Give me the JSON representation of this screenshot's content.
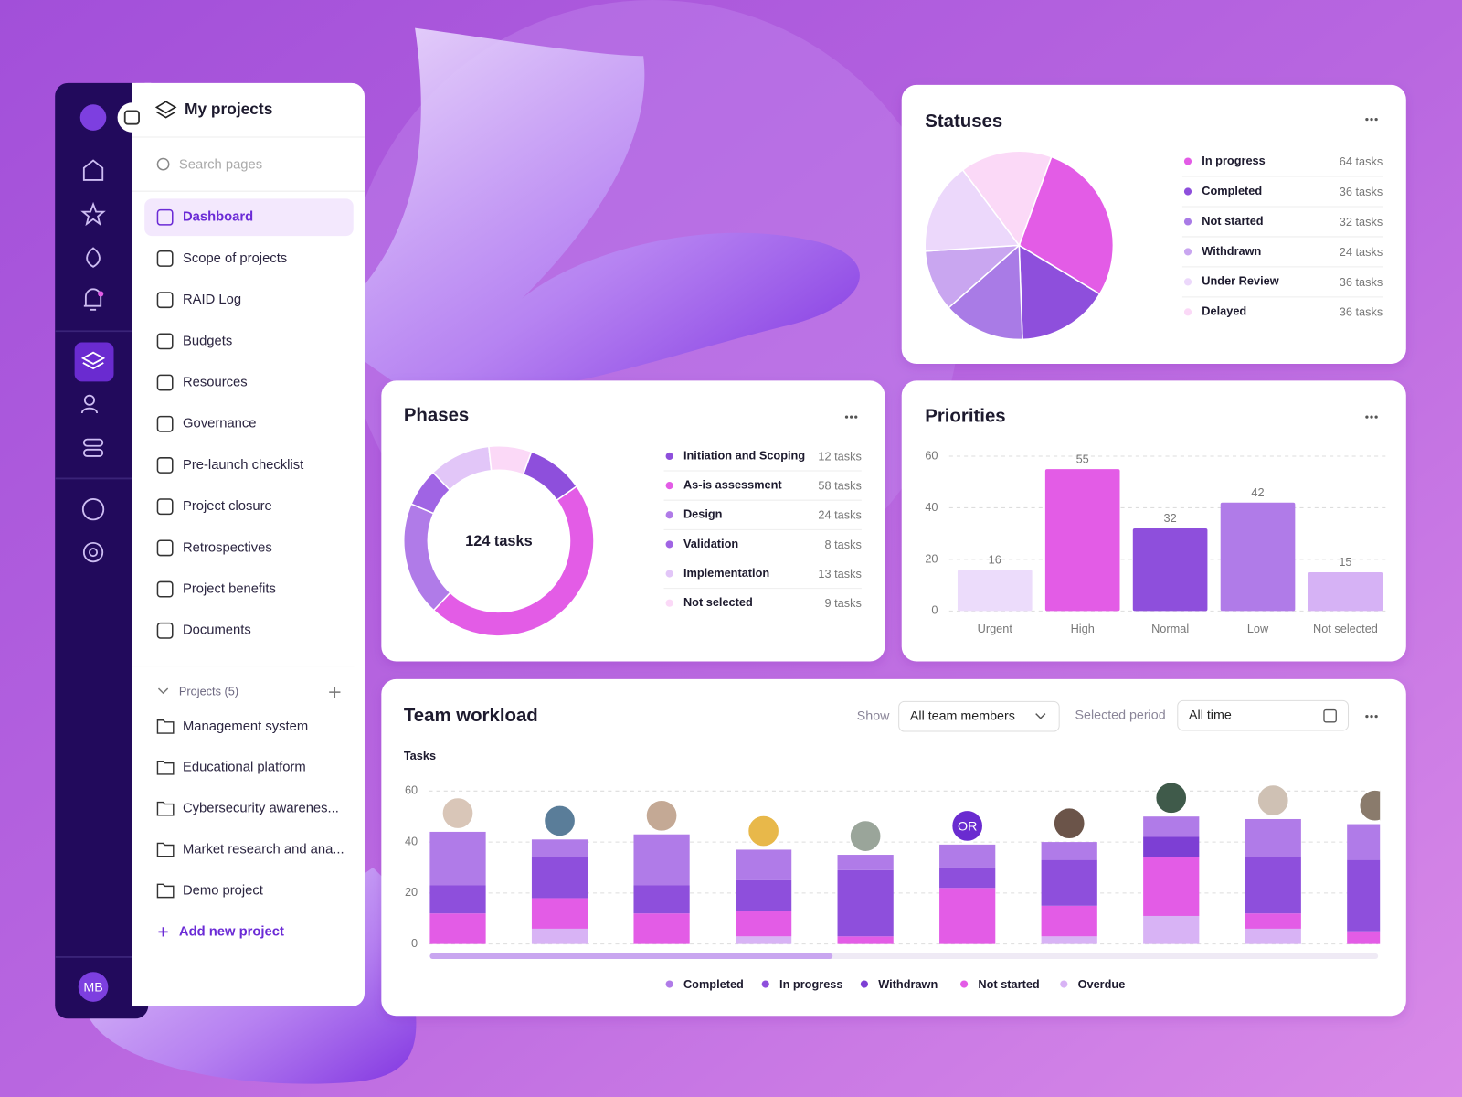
{
  "sidebar": {
    "user_initials": "MB"
  },
  "nav": {
    "title": "My projects",
    "search_placeholder": "Search pages",
    "items": [
      "Dashboard",
      "Scope of projects",
      "RAID Log",
      "Budgets",
      "Resources",
      "Governance",
      "Pre-launch checklist",
      "Project closure",
      "Retrospectives",
      "Project benefits",
      "Documents"
    ],
    "projects_header": "Projects (5)",
    "projects": [
      "Management system",
      "Educational platform",
      "Cybersecurity awarenes...",
      "Market research and ana...",
      "Demo project"
    ],
    "add_project": "Add new project"
  },
  "statuses": {
    "title": "Statuses",
    "type": "pie",
    "items": [
      {
        "name": "In progress",
        "color": "#e35ce6",
        "value": 64,
        "label": "64 tasks"
      },
      {
        "name": "Completed",
        "color": "#8e4fdc",
        "value": 36,
        "label": "36 tasks"
      },
      {
        "name": "Not started",
        "color": "#a97be6",
        "value": 32,
        "label": "32 tasks"
      },
      {
        "name": "Withdrawn",
        "color": "#c9a6f0",
        "value": 24,
        "label": "24 tasks"
      },
      {
        "name": "Under Review",
        "color": "#ecd8fb",
        "value": 36,
        "label": "36 tasks"
      },
      {
        "name": "Delayed",
        "color": "#fbd9f7",
        "value": 36,
        "label": "36 tasks"
      }
    ]
  },
  "phases": {
    "title": "Phases",
    "type": "donut",
    "total_label": "124 tasks",
    "items": [
      {
        "name": "Initiation and Scoping",
        "color": "#8e4fdc",
        "value": 12,
        "label": "12 tasks"
      },
      {
        "name": "As-is assessment",
        "color": "#e35ce6",
        "value": 58,
        "label": "58 tasks"
      },
      {
        "name": "Design",
        "color": "#b07be8",
        "value": 24,
        "label": "24 tasks"
      },
      {
        "name": "Validation",
        "color": "#a064e4",
        "value": 8,
        "label": "8 tasks"
      },
      {
        "name": "Implementation",
        "color": "#e2c6f8",
        "value": 13,
        "label": "13 tasks"
      },
      {
        "name": "Not selected",
        "color": "#fbd9f7",
        "value": 9,
        "label": "9 tasks"
      }
    ]
  },
  "priorities": {
    "title": "Priorities",
    "type": "bar",
    "categories": [
      "Urgent",
      "High",
      "Normal",
      "Low",
      "Not selected"
    ],
    "values": [
      16,
      55,
      32,
      42,
      15
    ],
    "colors": [
      "#ecdcfb",
      "#e35ce6",
      "#8e4fdc",
      "#b07be8",
      "#d6b2f5"
    ],
    "ylim": [
      0,
      60
    ],
    "yticks": [
      0,
      20,
      40,
      60
    ],
    "grid": true
  },
  "team_workload": {
    "title": "Team workload",
    "show_label": "Show",
    "show_value": "All team members",
    "period_label": "Selected period",
    "period_value": "All time",
    "chart": {
      "type": "stacked-bar",
      "y_label": "Tasks",
      "ylim": [
        0,
        60
      ],
      "yticks": [
        0,
        20,
        40,
        60
      ],
      "grid": true,
      "categories": [
        null,
        null,
        null,
        null,
        null,
        "OR",
        null,
        null,
        null,
        null
      ],
      "series": [
        {
          "name": "Completed",
          "color": "#b07be8",
          "values": [
            21,
            7,
            20,
            12,
            6,
            9,
            7,
            8,
            15,
            14
          ]
        },
        {
          "name": "In progress",
          "color": "#8e4fdc",
          "values": [
            11,
            16,
            11,
            12,
            26,
            8,
            18,
            0,
            22,
            28
          ]
        },
        {
          "name": "Withdrawn",
          "color": "#7d3fd4",
          "values": [
            0,
            0,
            0,
            0,
            0,
            0,
            0,
            8,
            0,
            0
          ]
        },
        {
          "name": "Not started",
          "color": "#e35ce6",
          "values": [
            12,
            12,
            12,
            10,
            3,
            22,
            12,
            23,
            6,
            5
          ]
        },
        {
          "name": "Overdue",
          "color": "#d8b3f5",
          "values": [
            0,
            6,
            0,
            3,
            0,
            0,
            3,
            11,
            6,
            0
          ]
        }
      ]
    }
  }
}
